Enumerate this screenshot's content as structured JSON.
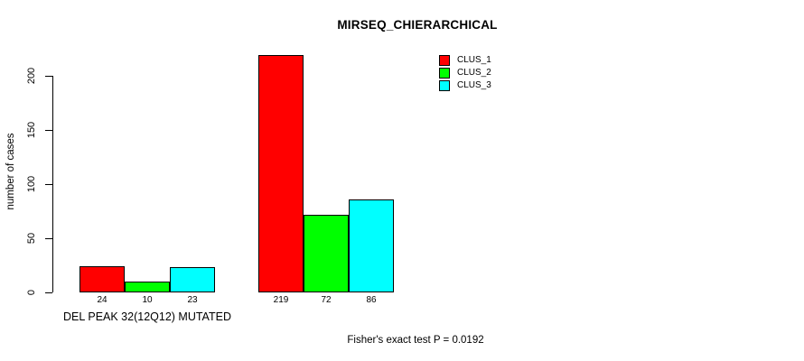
{
  "chart_data": {
    "type": "bar",
    "title": "MIRSEQ_CHIERARCHICAL",
    "ylabel": "number of cases",
    "xlabel": "",
    "categories": [
      "DEL PEAK 32(12Q12) MUTATED",
      ""
    ],
    "series": [
      {
        "name": "CLUS_1",
        "color": "#FF0000",
        "values": [
          24,
          219
        ]
      },
      {
        "name": "CLUS_2",
        "color": "#00FF00",
        "values": [
          10,
          72
        ]
      },
      {
        "name": "CLUS_3",
        "color": "#00FFFF",
        "values": [
          23,
          86
        ]
      }
    ],
    "yticks": [
      0,
      50,
      100,
      150,
      200
    ],
    "ylim": [
      0,
      200
    ],
    "grid": false,
    "bar_value_labels": true,
    "legend_position": "top-right",
    "annotation": "Fisher's exact test P = 0.0192",
    "colors": {
      "background": "#FFFFFF",
      "axis": "#000000",
      "text": "#000000"
    }
  }
}
